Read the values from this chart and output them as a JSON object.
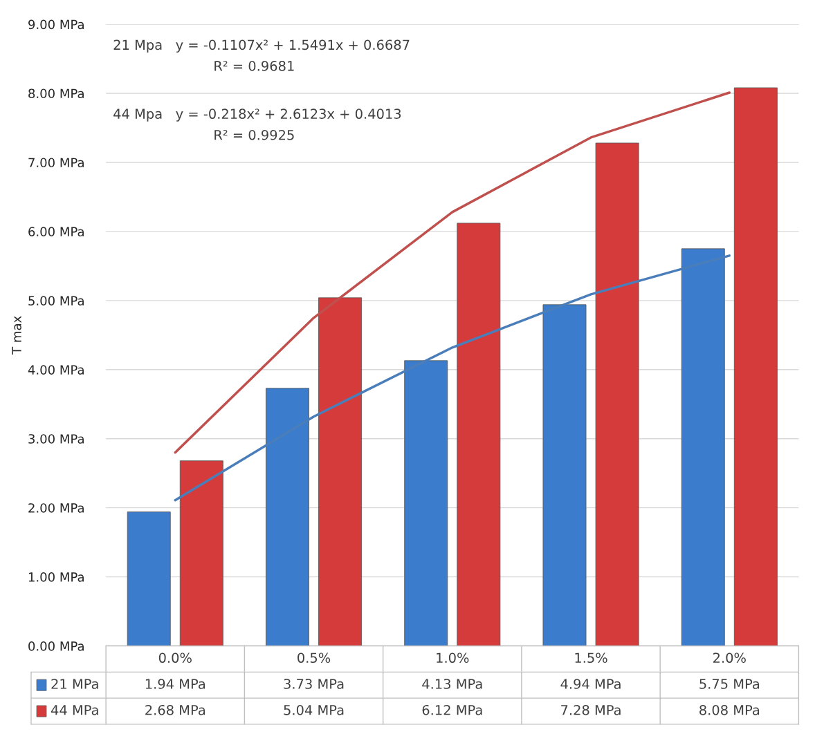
{
  "chart_data": {
    "type": "bar",
    "ylabel": "T max",
    "categories": [
      "0.0%",
      "0.5%",
      "1.0%",
      "1.5%",
      "2.0%"
    ],
    "series": [
      {
        "name": "21 MPa",
        "color": "#3b7ccc",
        "values": [
          1.94,
          3.73,
          4.13,
          4.94,
          5.75
        ],
        "value_labels": [
          "1.94 MPa",
          "3.73 MPa",
          "4.13 MPa",
          "4.94 MPa",
          "5.75 MPa"
        ]
      },
      {
        "name": "44 MPa",
        "color": "#d63b3b",
        "values": [
          2.68,
          5.04,
          6.12,
          7.28,
          8.08
        ],
        "value_labels": [
          "2.68 MPa",
          "5.04 MPa",
          "6.12 MPa",
          "7.28 MPa",
          "8.08 MPa"
        ]
      },
      {
        "type": "line",
        "color": "#4a7ebb",
        "values": [
          2.11,
          3.32,
          4.32,
          5.09,
          5.65
        ]
      },
      {
        "type": "line",
        "color": "#c0504d",
        "values": [
          2.8,
          4.75,
          6.28,
          7.36,
          8.01
        ]
      }
    ],
    "ylim": [
      0,
      9
    ],
    "yticks": [
      {
        "value": 0,
        "label": "0.00 MPa"
      },
      {
        "value": 1,
        "label": "1.00 MPa"
      },
      {
        "value": 2,
        "label": "2.00 MPa"
      },
      {
        "value": 3,
        "label": "3.00 MPa"
      },
      {
        "value": 4,
        "label": "4.00 MPa"
      },
      {
        "value": 5,
        "label": "5.00 MPa"
      },
      {
        "value": 6,
        "label": "6.00 MPa"
      },
      {
        "value": 7,
        "label": "7.00 MPa"
      },
      {
        "value": 8,
        "label": "8.00 MPa"
      },
      {
        "value": 9,
        "label": "9.00 MPa"
      }
    ],
    "grid": "y",
    "legend": "bottom",
    "annotations": [
      "21 Mpa   y = -0.1107x² + 1.5491x + 0.6687",
      "R² = 0.9681",
      "44 Mpa   y = -0.218x² + 2.6123x + 0.4013",
      "R² = 0.9925"
    ]
  }
}
